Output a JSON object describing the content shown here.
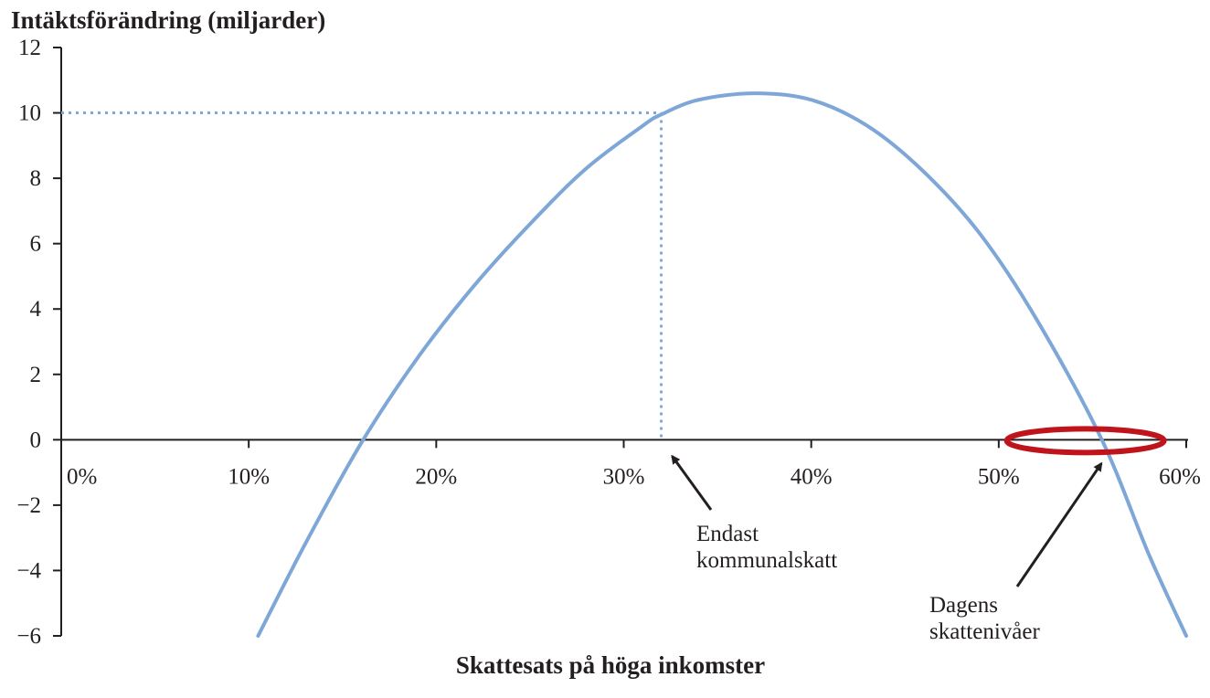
{
  "chart_data": {
    "type": "line",
    "title": "",
    "ylabel": "Intäktsförändring (miljarder)",
    "xlabel": "Skattesats på höga inkomster",
    "xlim": [
      0,
      60
    ],
    "ylim": [
      -6,
      12
    ],
    "x_ticks": [
      {
        "value": 0,
        "label": "0%"
      },
      {
        "value": 10,
        "label": "10%"
      },
      {
        "value": 20,
        "label": "20%"
      },
      {
        "value": 30,
        "label": "30%"
      },
      {
        "value": 40,
        "label": "40%"
      },
      {
        "value": 50,
        "label": "50%"
      },
      {
        "value": 60,
        "label": "60%"
      }
    ],
    "y_ticks": [
      {
        "value": 12,
        "label": "12"
      },
      {
        "value": 10,
        "label": "10"
      },
      {
        "value": 8,
        "label": "8"
      },
      {
        "value": 6,
        "label": "6"
      },
      {
        "value": 4,
        "label": "4"
      },
      {
        "value": 2,
        "label": "2"
      },
      {
        "value": 0,
        "label": "0"
      },
      {
        "value": -2,
        "label": "−2"
      },
      {
        "value": -4,
        "label": "−4"
      },
      {
        "value": -6,
        "label": "−6"
      }
    ],
    "grid": false,
    "series": [
      {
        "color": "#7ea7d8",
        "x": [
          10.5,
          13,
          16,
          19,
          22,
          25,
          28,
          31,
          32,
          34,
          37,
          40,
          43,
          46,
          49,
          52,
          55.5,
          58,
          60
        ],
        "y": [
          -6,
          -3.2,
          -0.1,
          2.5,
          4.7,
          6.6,
          8.3,
          9.6,
          9.95,
          10.4,
          10.6,
          10.4,
          9.6,
          8.2,
          6.3,
          3.7,
          0,
          -3.5,
          -6
        ]
      }
    ],
    "reference_point": {
      "x": 32,
      "y": 10,
      "color": "#7ea7d8"
    },
    "highlight_x": 55.5,
    "highlight_color": "#c0141c",
    "annotations": [
      {
        "text_lines": [
          "Endast",
          "kommunalskatt"
        ],
        "target_x": 32
      },
      {
        "text_lines": [
          "Dagens",
          "skattenivåer"
        ],
        "target_x": 54.5
      }
    ]
  }
}
